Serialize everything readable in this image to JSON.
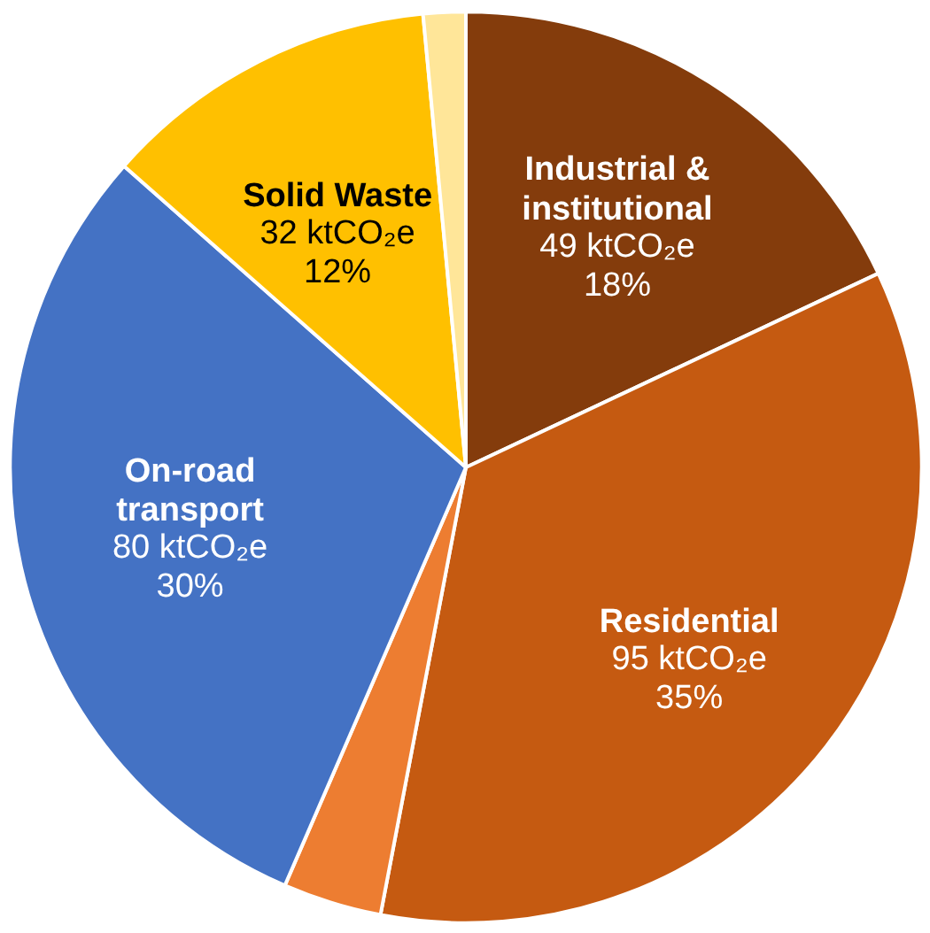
{
  "chart_data": {
    "type": "pie",
    "categories": [
      "Industrial &\ninstitutional",
      "Residential",
      null,
      "On-road\ntransport",
      "Solid Waste",
      null
    ],
    "values": [
      18,
      35,
      3.5,
      30,
      12,
      1.5
    ],
    "colors": [
      "#843c0c",
      "#c55a11",
      "#ed7d31",
      "#4472c4",
      "#ffc000",
      "#ffe699"
    ],
    "value_labels": [
      "49 ktCO₂e\n18%",
      "95 ktCO₂e\n35%",
      null,
      "80 ktCO₂e\n30%",
      "32 ktCO₂e\n12%",
      null
    ]
  }
}
